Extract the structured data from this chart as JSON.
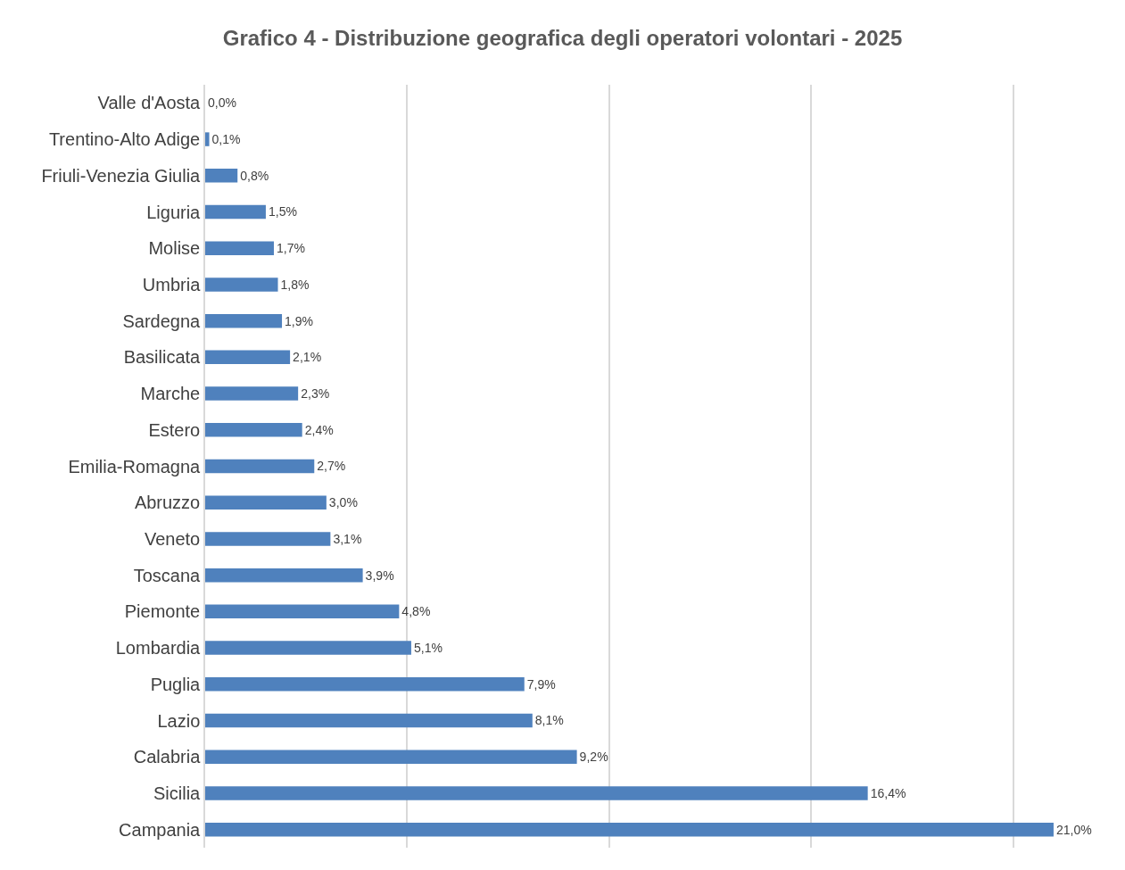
{
  "chart_data": {
    "type": "bar",
    "orientation": "horizontal",
    "title": "Grafico 4 - Distribuzione geografica degli operatori volontari - 2025",
    "categories": [
      "Valle d'Aosta",
      "Trentino-Alto Adige",
      "Friuli-Venezia Giulia",
      "Liguria",
      "Molise",
      "Umbria",
      "Sardegna",
      "Basilicata",
      "Marche",
      "Estero",
      "Emilia-Romagna",
      "Abruzzo",
      "Veneto",
      "Toscana",
      "Piemonte",
      "Lombardia",
      "Puglia",
      "Lazio",
      "Calabria",
      "Sicilia",
      "Campania"
    ],
    "values": [
      0.0,
      0.1,
      0.8,
      1.5,
      1.7,
      1.8,
      1.9,
      2.1,
      2.3,
      2.4,
      2.7,
      3.0,
      3.1,
      3.9,
      4.8,
      5.1,
      7.9,
      8.1,
      9.2,
      16.4,
      21.0
    ],
    "value_labels": [
      "0,0%",
      "0,1%",
      "0,8%",
      "1,5%",
      "1,7%",
      "1,8%",
      "1,9%",
      "2,1%",
      "2,3%",
      "2,4%",
      "2,7%",
      "3,0%",
      "3,1%",
      "3,9%",
      "4,8%",
      "5,1%",
      "7,9%",
      "8,1%",
      "9,2%",
      "16,4%",
      "21,0%"
    ],
    "color": "#4f81bd",
    "grid": "x",
    "tick_labels": "y"
  }
}
